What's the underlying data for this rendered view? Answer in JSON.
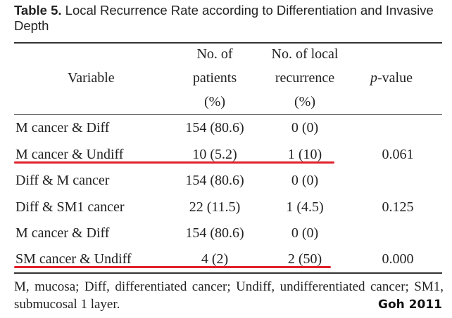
{
  "caption": {
    "label": "Table 5.",
    "text": " Local Recurrence Rate according to Differentiation and Invasive Depth"
  },
  "headers": {
    "variable": "Variable",
    "patients": [
      "No. of",
      "patients",
      "(%)"
    ],
    "recurrence": [
      "No. of local",
      "recurrence",
      "(%)"
    ],
    "pvalue_italic": "p",
    "pvalue_rest": "-value"
  },
  "rows": [
    {
      "variable": "M cancer & Diff",
      "patients": "154 (80.6)",
      "recurrence": "0 (0)",
      "p": ""
    },
    {
      "variable": "M cancer & Undiff",
      "patients": "10 (5.2)",
      "recurrence": "1 (10)",
      "p": "0.061"
    },
    {
      "variable": "Diff & M cancer",
      "patients": "154 (80.6)",
      "recurrence": "0 (0)",
      "p": ""
    },
    {
      "variable": "Diff & SM1 cancer",
      "patients": "22 (11.5)",
      "recurrence": "1 (4.5)",
      "p": "0.125"
    },
    {
      "variable": "M cancer & Diff",
      "patients": "154 (80.6)",
      "recurrence": "0 (0)",
      "p": ""
    },
    {
      "variable": "SM cancer & Undiff",
      "patients": "4 (2)",
      "recurrence": "2 (50)",
      "p": "0.000"
    }
  ],
  "footnote": "M, mucosa; Diff, differentiated cancer; Undiff, undifferentiated cancer; SM1, submucosal 1 layer.",
  "credit": "Goh 2011",
  "highlight_color": "#e0202a"
}
